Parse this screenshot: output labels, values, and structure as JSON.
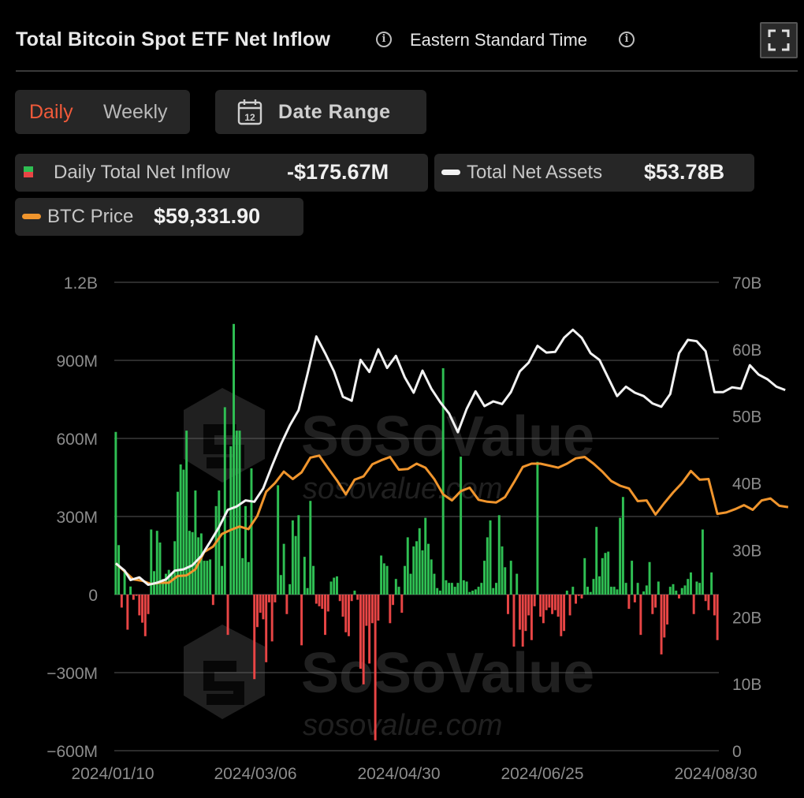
{
  "header": {
    "title": "Total Bitcoin Spot ETF Net Inflow",
    "timezone": "Eastern Standard Time"
  },
  "toggles": {
    "daily": "Daily",
    "weekly": "Weekly",
    "date_range": "Date Range",
    "calendar_day": "12"
  },
  "legend": {
    "inflow_label": "Daily Total Net Inflow",
    "inflow_value": "-$175.67M",
    "assets_label": "Total Net Assets",
    "assets_value": "$53.78B",
    "price_label": "BTC Price",
    "price_value": "$59,331.90"
  },
  "colors": {
    "positive": "#2fbf53",
    "negative": "#e84545",
    "assets_line": "#f2f2f2",
    "price_line": "#f0952d",
    "accent": "#f05a3a"
  },
  "watermark": {
    "brand": "SoSoValue",
    "url": "sosovalue.com"
  },
  "chart_data": {
    "type": "bar+line",
    "x_ticks": [
      "2024/01/10",
      "2024/03/06",
      "2024/04/30",
      "2024/06/25",
      "2024/08/30"
    ],
    "x_range": [
      "2024/01/10",
      "2024/08/30"
    ],
    "y_left": {
      "ticks": [
        "1.2B",
        "900M",
        "600M",
        "300M",
        "0",
        "−300M",
        "−600M"
      ],
      "min": -600000000,
      "max": 1200000000,
      "unit": "USD"
    },
    "y_right": {
      "ticks": [
        "70B",
        "60B",
        "50B",
        "40B",
        "30B",
        "20B",
        "10B",
        "0"
      ],
      "min": 0,
      "max": 70000000000,
      "unit": "USD"
    },
    "grid": true,
    "series": [
      {
        "name": "Daily Total Net Inflow",
        "kind": "bar",
        "unit": "M USD",
        "values": [
          625,
          190,
          -50,
          90,
          -135,
          31,
          -20,
          -5,
          -80,
          -108,
          -160,
          -75,
          250,
          90,
          245,
          200,
          60,
          80,
          95,
          85,
          205,
          395,
          500,
          480,
          630,
          245,
          240,
          400,
          220,
          235,
          130,
          130,
          135,
          -40,
          340,
          400,
          110,
          720,
          -155,
          570,
          1040,
          630,
          630,
          140,
          340,
          125,
          485,
          -325,
          -125,
          -70,
          -95,
          -260,
          -30,
          -180,
          -30,
          420,
          75,
          195,
          -75,
          40,
          285,
          225,
          305,
          -195,
          145,
          25,
          360,
          110,
          -35,
          -45,
          -55,
          -155,
          -65,
          50,
          65,
          70,
          -25,
          -85,
          -145,
          -160,
          -25,
          15,
          -20,
          -285,
          -345,
          -120,
          -265,
          -110,
          -560,
          -100,
          150,
          120,
          110,
          -110,
          -40,
          60,
          30,
          -70,
          110,
          220,
          80,
          185,
          205,
          255,
          170,
          295,
          195,
          135,
          80,
          25,
          15,
          870,
          55,
          45,
          45,
          30,
          45,
          530,
          55,
          50,
          10,
          15,
          20,
          30,
          45,
          130,
          220,
          285,
          25,
          45,
          305,
          185,
          105,
          -75,
          130,
          -200,
          80,
          -135,
          -200,
          -140,
          -80,
          -175,
          -45,
          510,
          -85,
          -110,
          -60,
          -50,
          -75,
          -60,
          -85,
          -160,
          -140,
          15,
          -80,
          30,
          -35,
          -5,
          -15,
          140,
          30,
          10,
          60,
          260,
          70,
          140,
          160,
          165,
          30,
          30,
          20,
          295,
          375,
          45,
          -55,
          130,
          -30,
          45,
          -155,
          12,
          35,
          125,
          -75,
          -50,
          50,
          -230,
          -165,
          -115,
          30,
          40,
          15,
          -15,
          25,
          35,
          60,
          85,
          -75,
          50,
          45,
          250,
          -25,
          -60,
          85,
          -80,
          -175
        ]
      },
      {
        "name": "Total Net Assets",
        "kind": "line",
        "axis": "right",
        "unit": "B USD",
        "points": [
          [
            0,
            28.0
          ],
          [
            3,
            26.9
          ],
          [
            5,
            25.5
          ],
          [
            8,
            25.9
          ],
          [
            11,
            24.8
          ],
          [
            14,
            25.1
          ],
          [
            17,
            25.6
          ],
          [
            20,
            26.9
          ],
          [
            23,
            27.1
          ],
          [
            26,
            27.7
          ],
          [
            29,
            29.1
          ],
          [
            32,
            31.2
          ],
          [
            35,
            33.4
          ],
          [
            38,
            36.0
          ],
          [
            41,
            36.5
          ],
          [
            44,
            37.4
          ],
          [
            47,
            37.2
          ],
          [
            50,
            39.2
          ],
          [
            53,
            42.6
          ],
          [
            56,
            45.8
          ],
          [
            59,
            48.6
          ],
          [
            62,
            50.9
          ],
          [
            65,
            56.3
          ],
          [
            68,
            61.9
          ],
          [
            71,
            59.4
          ],
          [
            74,
            56.7
          ],
          [
            77,
            52.9
          ],
          [
            80,
            52.3
          ],
          [
            83,
            58.4
          ],
          [
            86,
            56.6
          ],
          [
            89,
            60.0
          ],
          [
            92,
            57.2
          ],
          [
            95,
            59.0
          ],
          [
            98,
            55.8
          ],
          [
            101,
            53.5
          ],
          [
            104,
            56.8
          ],
          [
            107,
            54.1
          ],
          [
            110,
            52.1
          ],
          [
            113,
            50.4
          ],
          [
            116,
            47.6
          ],
          [
            119,
            51.1
          ],
          [
            122,
            53.7
          ],
          [
            125,
            51.5
          ],
          [
            128,
            52.2
          ],
          [
            131,
            51.8
          ],
          [
            134,
            53.6
          ],
          [
            137,
            56.7
          ],
          [
            140,
            58.0
          ],
          [
            143,
            60.5
          ],
          [
            146,
            59.5
          ],
          [
            149,
            59.6
          ],
          [
            152,
            61.7
          ],
          [
            155,
            62.9
          ],
          [
            158,
            61.7
          ],
          [
            161,
            59.4
          ],
          [
            164,
            58.4
          ],
          [
            167,
            55.7
          ],
          [
            170,
            53.0
          ],
          [
            173,
            54.4
          ],
          [
            176,
            53.5
          ],
          [
            179,
            53.0
          ],
          [
            182,
            51.9
          ],
          [
            185,
            51.4
          ],
          [
            188,
            53.3
          ],
          [
            191,
            59.4
          ],
          [
            194,
            61.4
          ],
          [
            197,
            61.2
          ],
          [
            200,
            59.7
          ],
          [
            203,
            53.6
          ],
          [
            206,
            53.6
          ],
          [
            209,
            54.3
          ],
          [
            212,
            54.1
          ],
          [
            215,
            57.6
          ],
          [
            218,
            56.2
          ],
          [
            221,
            55.5
          ],
          [
            224,
            54.4
          ],
          [
            227,
            53.9
          ]
        ]
      },
      {
        "name": "BTC Price",
        "kind": "line",
        "axis": "right",
        "unit": "BTC price rendered on right-axis scale (B)",
        "points": [
          [
            0,
            28.0
          ],
          [
            3,
            26.8
          ],
          [
            6,
            25.6
          ],
          [
            9,
            25.4
          ],
          [
            12,
            24.9
          ],
          [
            15,
            25.1
          ],
          [
            18,
            25.1
          ],
          [
            21,
            26.1
          ],
          [
            24,
            26.2
          ],
          [
            27,
            27.1
          ],
          [
            30,
            29.7
          ],
          [
            33,
            30.5
          ],
          [
            36,
            32.4
          ],
          [
            39,
            33.0
          ],
          [
            42,
            33.5
          ],
          [
            45,
            33.1
          ],
          [
            48,
            35.1
          ],
          [
            51,
            38.7
          ],
          [
            54,
            40.0
          ],
          [
            57,
            41.7
          ],
          [
            60,
            40.6
          ],
          [
            63,
            41.6
          ],
          [
            66,
            43.8
          ],
          [
            69,
            44.1
          ],
          [
            72,
            42.2
          ],
          [
            75,
            40.4
          ],
          [
            78,
            38.3
          ],
          [
            81,
            40.5
          ],
          [
            84,
            41.0
          ],
          [
            87,
            42.8
          ],
          [
            90,
            43.4
          ],
          [
            93,
            43.9
          ],
          [
            96,
            42.0
          ],
          [
            99,
            42.1
          ],
          [
            102,
            42.9
          ],
          [
            105,
            42.3
          ],
          [
            108,
            40.6
          ],
          [
            111,
            38.3
          ],
          [
            114,
            37.4
          ],
          [
            117,
            38.8
          ],
          [
            120,
            39.3
          ],
          [
            123,
            37.5
          ],
          [
            126,
            37.2
          ],
          [
            129,
            37.1
          ],
          [
            132,
            37.9
          ],
          [
            135,
            40.1
          ],
          [
            138,
            42.4
          ],
          [
            141,
            42.9
          ],
          [
            144,
            42.9
          ],
          [
            147,
            42.6
          ],
          [
            150,
            42.3
          ],
          [
            153,
            42.9
          ],
          [
            156,
            43.7
          ],
          [
            159,
            43.9
          ],
          [
            162,
            42.9
          ],
          [
            165,
            41.7
          ],
          [
            168,
            40.3
          ],
          [
            171,
            39.6
          ],
          [
            174,
            39.2
          ],
          [
            177,
            37.3
          ],
          [
            180,
            37.4
          ],
          [
            183,
            35.3
          ],
          [
            186,
            37.0
          ],
          [
            189,
            38.6
          ],
          [
            192,
            40.0
          ],
          [
            195,
            41.8
          ],
          [
            198,
            40.5
          ],
          [
            201,
            40.6
          ],
          [
            204,
            35.4
          ],
          [
            207,
            35.6
          ],
          [
            210,
            36.1
          ],
          [
            213,
            36.7
          ],
          [
            216,
            36.0
          ],
          [
            219,
            37.4
          ],
          [
            222,
            37.7
          ],
          [
            225,
            36.6
          ],
          [
            228,
            36.4
          ]
        ]
      }
    ]
  }
}
